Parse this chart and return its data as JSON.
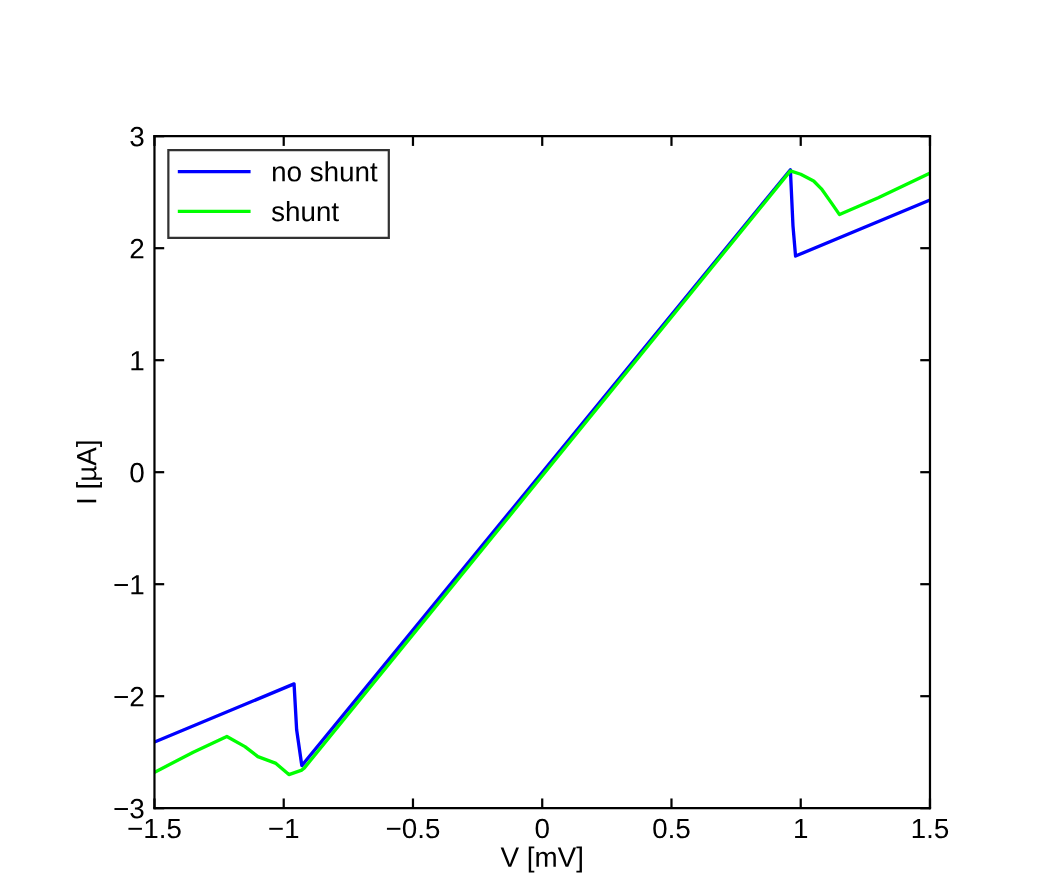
{
  "chart_data": {
    "type": "line",
    "xlabel": "V [mV]",
    "ylabel": "I [µA]",
    "xlim": [
      -1.5,
      1.5
    ],
    "ylim": [
      -3,
      3
    ],
    "xticks": [
      {
        "value": -1.5,
        "label": "−1.5"
      },
      {
        "value": -1,
        "label": "−1"
      },
      {
        "value": -0.5,
        "label": "−0.5"
      },
      0,
      0.5,
      1,
      1.5
    ],
    "yticks": [
      {
        "value": -3,
        "label": "−3"
      },
      {
        "value": -2,
        "label": "−2"
      },
      {
        "value": -1,
        "label": "−1"
      },
      0,
      1,
      2,
      3
    ],
    "grid": false,
    "legend": "top left",
    "marker": "none",
    "line_style": "solid",
    "series": [
      {
        "name": "no shunt",
        "color": "#0000ff",
        "x": [
          -1.5,
          -0.96,
          -0.95,
          -0.93,
          0.96,
          0.97,
          0.98,
          1.5
        ],
        "values": [
          -2.41,
          -1.89,
          -2.3,
          -2.62,
          2.7,
          2.2,
          1.93,
          2.43
        ]
      },
      {
        "name": "shunt",
        "color": "#00ff00",
        "x": [
          -1.5,
          -1.35,
          -1.22,
          -1.15,
          -1.1,
          -1.03,
          -0.98,
          -0.93,
          -0.92,
          0.96,
          1.0,
          1.05,
          1.08,
          1.12,
          1.15,
          1.3,
          1.5
        ],
        "values": [
          -2.68,
          -2.5,
          -2.36,
          -2.45,
          -2.54,
          -2.6,
          -2.7,
          -2.66,
          -2.64,
          2.69,
          2.66,
          2.6,
          2.53,
          2.4,
          2.3,
          2.45,
          2.67
        ]
      }
    ]
  }
}
